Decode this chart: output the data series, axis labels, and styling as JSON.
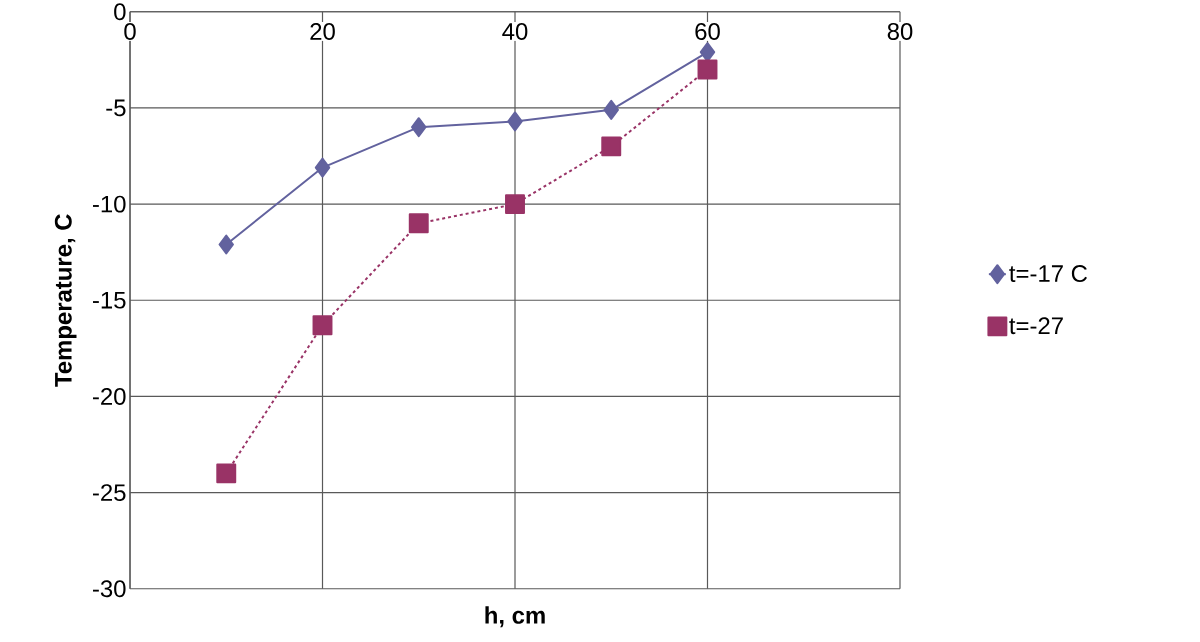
{
  "chart_data": {
    "type": "line",
    "xlabel": "h, cm",
    "ylabel": "Temperature, C",
    "x": [
      10,
      20,
      30,
      40,
      50,
      60
    ],
    "series": [
      {
        "name": "t=-17 C",
        "color": "#62629e",
        "marker": "diamond",
        "line_style": "solid",
        "values": [
          -12.1,
          -8.1,
          -6.0,
          -5.7,
          -5.1,
          -2.1
        ]
      },
      {
        "name": "t=-27",
        "color": "#993366",
        "marker": "square",
        "line_style": "dashed",
        "values": [
          -24,
          -16.3,
          -11,
          -10,
          -7.0,
          -3
        ]
      }
    ],
    "xlim": [
      0,
      80
    ],
    "xticks": [
      0,
      20,
      40,
      60,
      80
    ],
    "ylim": [
      -30,
      0
    ],
    "yticks": [
      -30,
      -25,
      -20,
      -15,
      -10,
      -5,
      0
    ],
    "grid": true,
    "legend": "right"
  }
}
